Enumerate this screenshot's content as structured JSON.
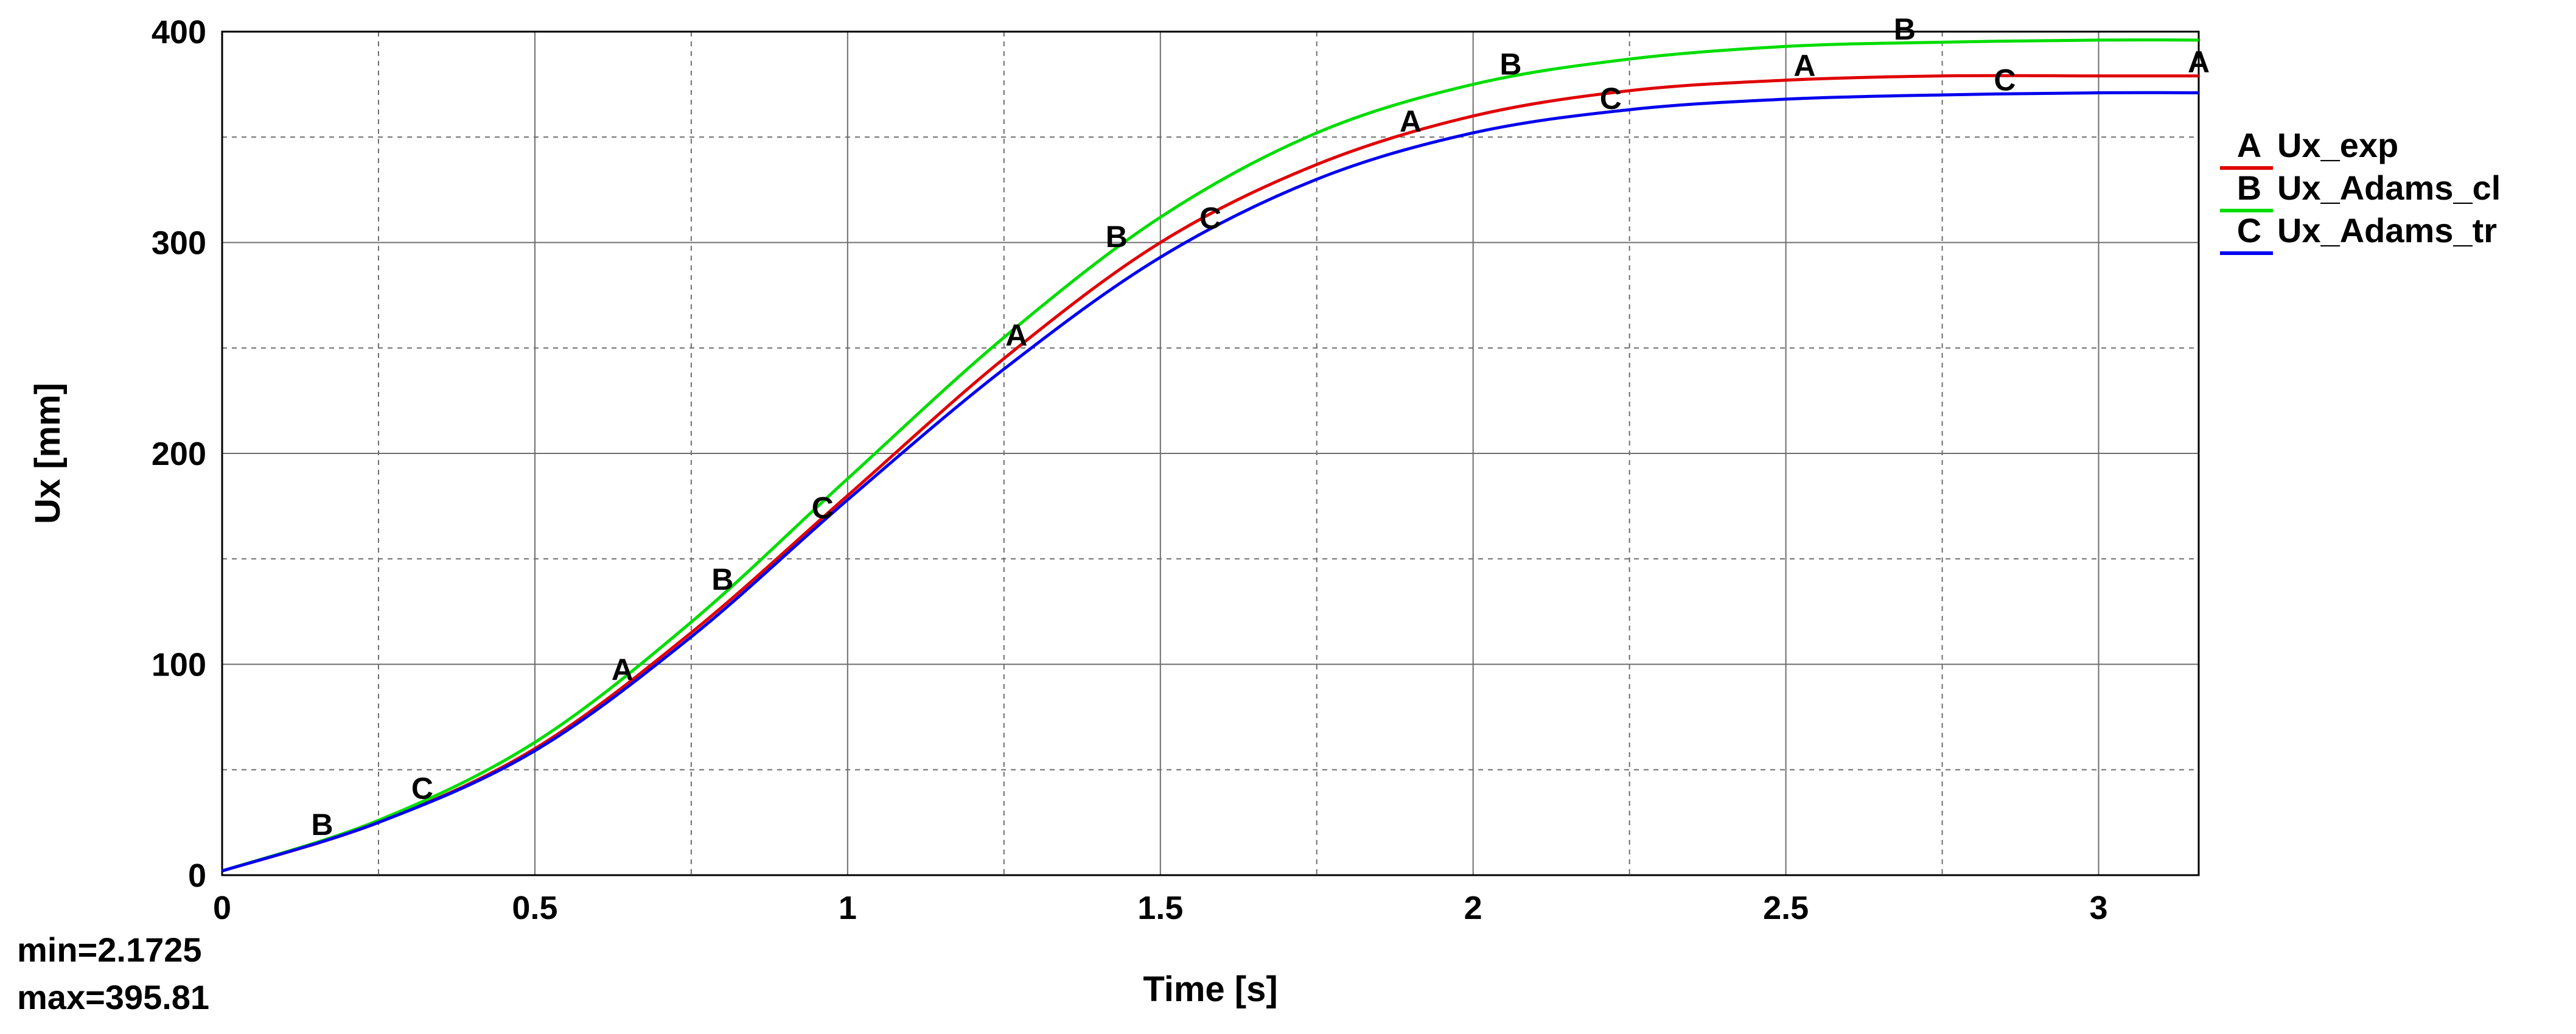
{
  "chart_data": {
    "type": "line",
    "xlabel": "Time [s]",
    "ylabel": "Ux [mm]",
    "xlim": [
      0,
      3.16
    ],
    "ylim": [
      0,
      400
    ],
    "x_ticks": [
      0,
      0.5,
      1,
      1.5,
      2,
      2.5,
      3
    ],
    "x_tick_labels": [
      "0",
      "0.5",
      "1",
      "1.5",
      "2",
      "2.5",
      "3"
    ],
    "y_ticks": [
      0,
      100,
      200,
      300,
      400
    ],
    "y_tick_labels": [
      "0",
      "100",
      "200",
      "300",
      "400"
    ],
    "grid": true,
    "legend_position": "right",
    "series": [
      {
        "name": "Ux_exp",
        "marker": "A",
        "color": "#e00000",
        "x": [
          0,
          0.25,
          0.5,
          0.75,
          1.0,
          1.25,
          1.5,
          1.75,
          2.0,
          2.25,
          2.5,
          2.75,
          3.0,
          3.16
        ],
        "values": [
          2,
          25,
          60,
          115,
          180,
          245,
          300,
          337,
          360,
          372,
          377,
          379,
          379,
          379
        ],
        "marker_x": [
          0.64,
          1.27,
          1.9,
          2.53,
          3.16
        ]
      },
      {
        "name": "Ux_Adams_cl",
        "marker": "B",
        "color": "#00dd00",
        "x": [
          0,
          0.25,
          0.5,
          0.75,
          1.0,
          1.25,
          1.5,
          1.75,
          2.0,
          2.25,
          2.5,
          2.75,
          3.0,
          3.16
        ],
        "values": [
          2,
          26,
          63,
          120,
          188,
          255,
          312,
          352,
          375,
          387,
          393,
          395,
          396,
          396
        ],
        "marker_x": [
          0.16,
          0.8,
          1.43,
          2.06,
          2.69
        ]
      },
      {
        "name": "Ux_Adams_tr",
        "marker": "C",
        "color": "#0000ee",
        "x": [
          0,
          0.25,
          0.5,
          0.75,
          1.0,
          1.25,
          1.5,
          1.75,
          2.0,
          2.25,
          2.5,
          2.75,
          3.0,
          3.16
        ],
        "values": [
          2,
          25,
          59,
          113,
          178,
          240,
          293,
          330,
          352,
          363,
          368,
          370,
          371,
          371
        ],
        "marker_x": [
          0.32,
          0.96,
          1.58,
          2.22,
          2.85
        ]
      }
    ]
  },
  "stats": {
    "min": "min=2.1725",
    "max": "max=395.81"
  }
}
